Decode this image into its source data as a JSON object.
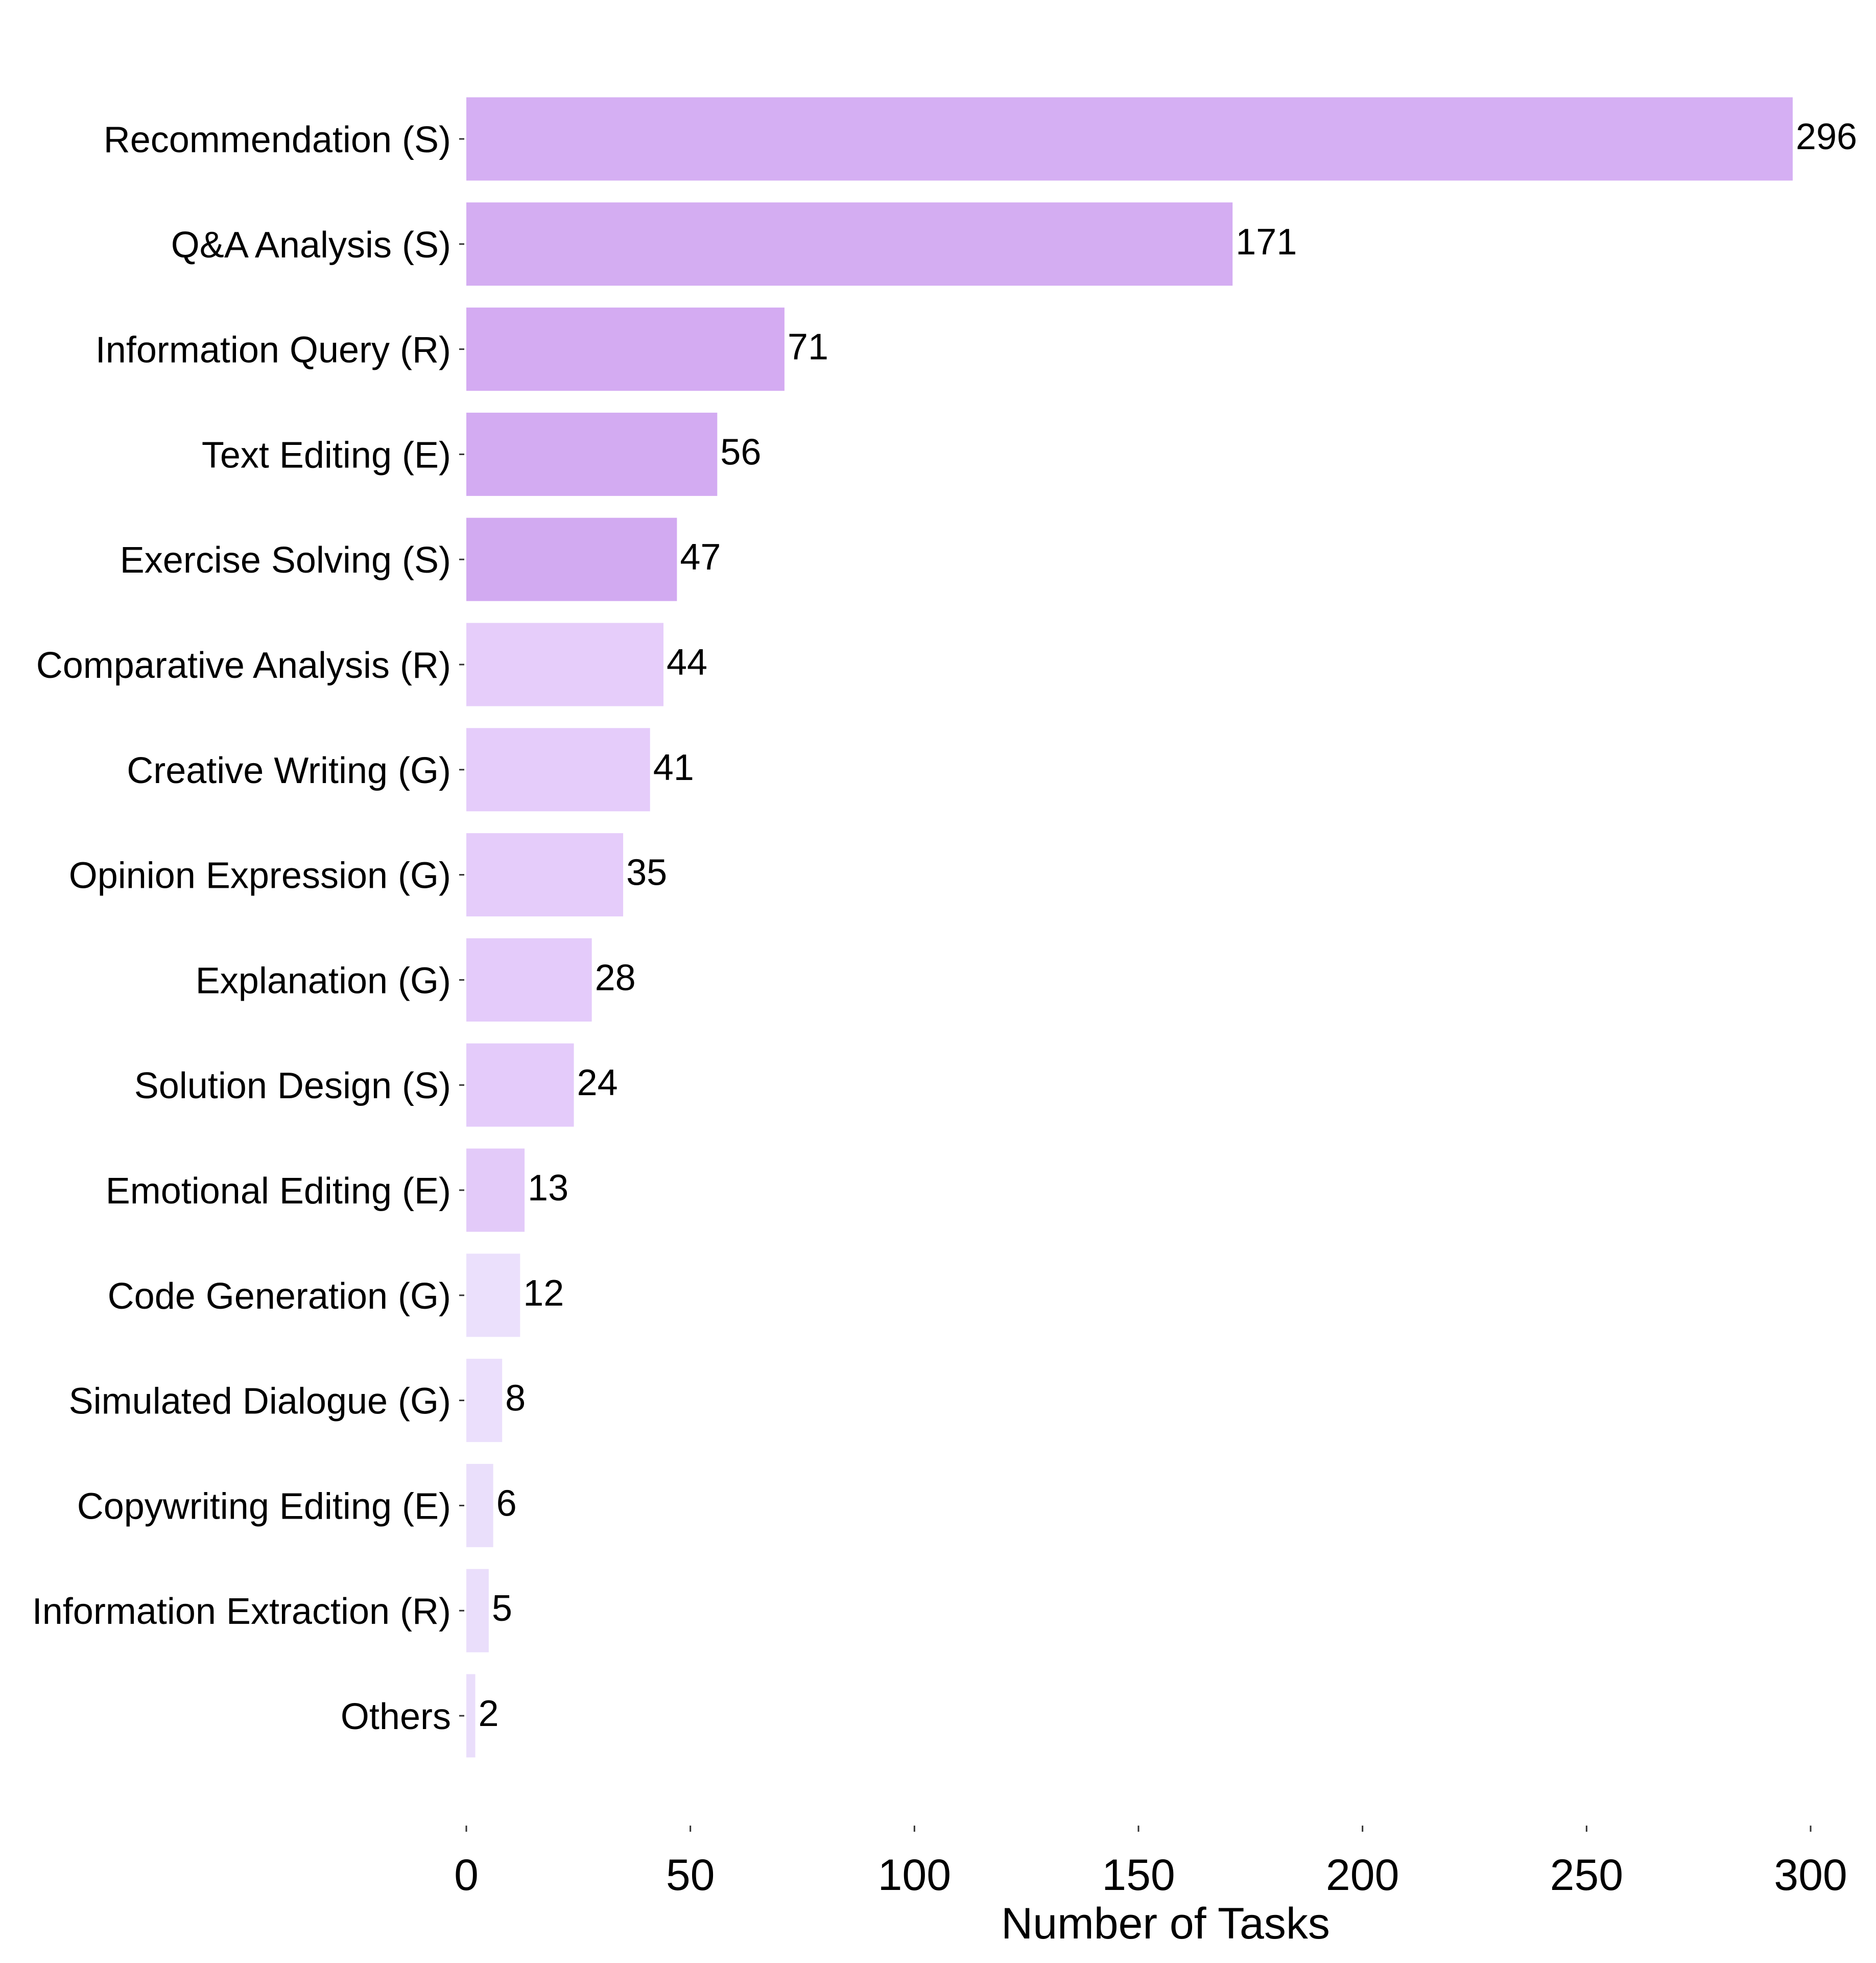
{
  "chart_data": {
    "type": "bar",
    "orientation": "horizontal",
    "title": "",
    "xlabel": "Number of Tasks",
    "ylabel": "",
    "xlim": [
      0,
      300
    ],
    "x_ticks": [
      "0",
      "50",
      "100",
      "150",
      "200",
      "250",
      "300"
    ],
    "grid": false,
    "categories": [
      "Recommendation (S)",
      "Q&A Analysis (S)",
      "Information Query (R)",
      "Text Editing (E)",
      "Exercise Solving (S)",
      "Comparative Analysis (R)",
      "Creative Writing (G)",
      "Opinion Expression (G)",
      "Explanation (G)",
      "Solution Design (S)",
      "Emotional Editing (E)",
      "Code Generation (G)",
      "Simulated Dialogue (G)",
      "Copywriting Editing (E)",
      "Information Extraction (R)",
      "Others"
    ],
    "values": [
      296,
      171,
      71,
      56,
      47,
      44,
      41,
      35,
      28,
      24,
      13,
      12,
      8,
      6,
      5,
      2
    ],
    "value_labels": [
      "296",
      "171",
      "71",
      "56",
      "47",
      "44",
      "41",
      "35",
      "28",
      "24",
      "13",
      "12",
      "8",
      "6",
      "5",
      "2"
    ],
    "bar_colors": [
      "#d5aff3",
      "#d4adf2",
      "#d4abf2",
      "#d3abf2",
      "#d2aaf1",
      "#e6cdfa",
      "#e5ccfa",
      "#e5ccfa",
      "#e4cbfa",
      "#e4cbfa",
      "#e3caf9",
      "#ebe0fc",
      "#ebdffc",
      "#eadffb",
      "#eadefb",
      "#eadefb"
    ]
  }
}
